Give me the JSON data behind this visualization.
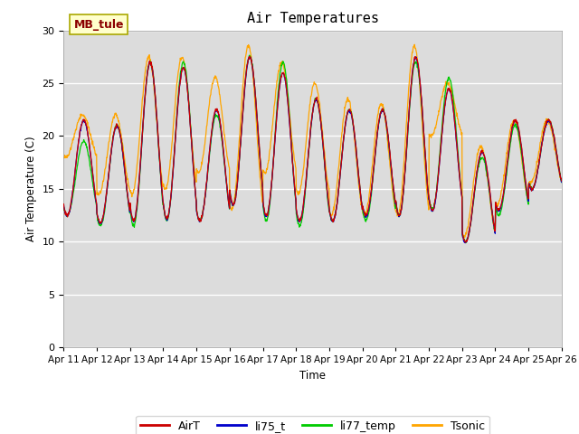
{
  "title": "Air Temperatures",
  "ylabel": "Air Temperature (C)",
  "xlabel": "Time",
  "annotation": "MB_tule",
  "ylim": [
    0,
    30
  ],
  "yticks": [
    0,
    5,
    10,
    15,
    20,
    25,
    30
  ],
  "n_days": 15,
  "colors": {
    "AirT": "#cc0000",
    "li75_t": "#0000cc",
    "li77_temp": "#00cc00",
    "Tsonic": "#ffa500"
  },
  "bg_color": "#dcdcdc",
  "fig_bg": "#ffffff",
  "day_peaks_airT": [
    21.5,
    21.0,
    27.0,
    26.5,
    22.5,
    27.5,
    26.0,
    23.5,
    22.5,
    22.5,
    27.5,
    24.5,
    18.5,
    21.5,
    21.5
  ],
  "day_mins_airT": [
    12.5,
    11.8,
    12.0,
    12.2,
    12.0,
    13.5,
    12.5,
    12.0,
    12.0,
    12.5,
    12.5,
    13.0,
    10.0,
    13.0,
    15.0
  ],
  "day_peaks_tsonic": [
    22.0,
    22.0,
    27.5,
    27.5,
    25.5,
    28.5,
    27.0,
    25.0,
    23.5,
    23.0,
    28.5,
    25.0,
    19.0,
    21.5,
    21.5
  ],
  "day_mins_tsonic": [
    18.0,
    14.5,
    14.5,
    15.0,
    16.5,
    13.0,
    16.5,
    14.5,
    12.5,
    12.5,
    12.5,
    20.0,
    10.5,
    13.5,
    15.5
  ],
  "day_peaks_li77": [
    19.5,
    21.0,
    27.0,
    27.0,
    22.0,
    27.5,
    27.0,
    23.5,
    22.5,
    22.5,
    27.0,
    25.5,
    18.0,
    21.0,
    21.5
  ],
  "day_mins_li77": [
    12.5,
    11.5,
    11.5,
    12.0,
    12.0,
    13.5,
    12.0,
    11.5,
    12.0,
    12.0,
    12.5,
    13.0,
    10.0,
    12.5,
    15.0
  ],
  "legend_labels": [
    "AirT",
    "li75_t",
    "li77_temp",
    "Tsonic"
  ]
}
